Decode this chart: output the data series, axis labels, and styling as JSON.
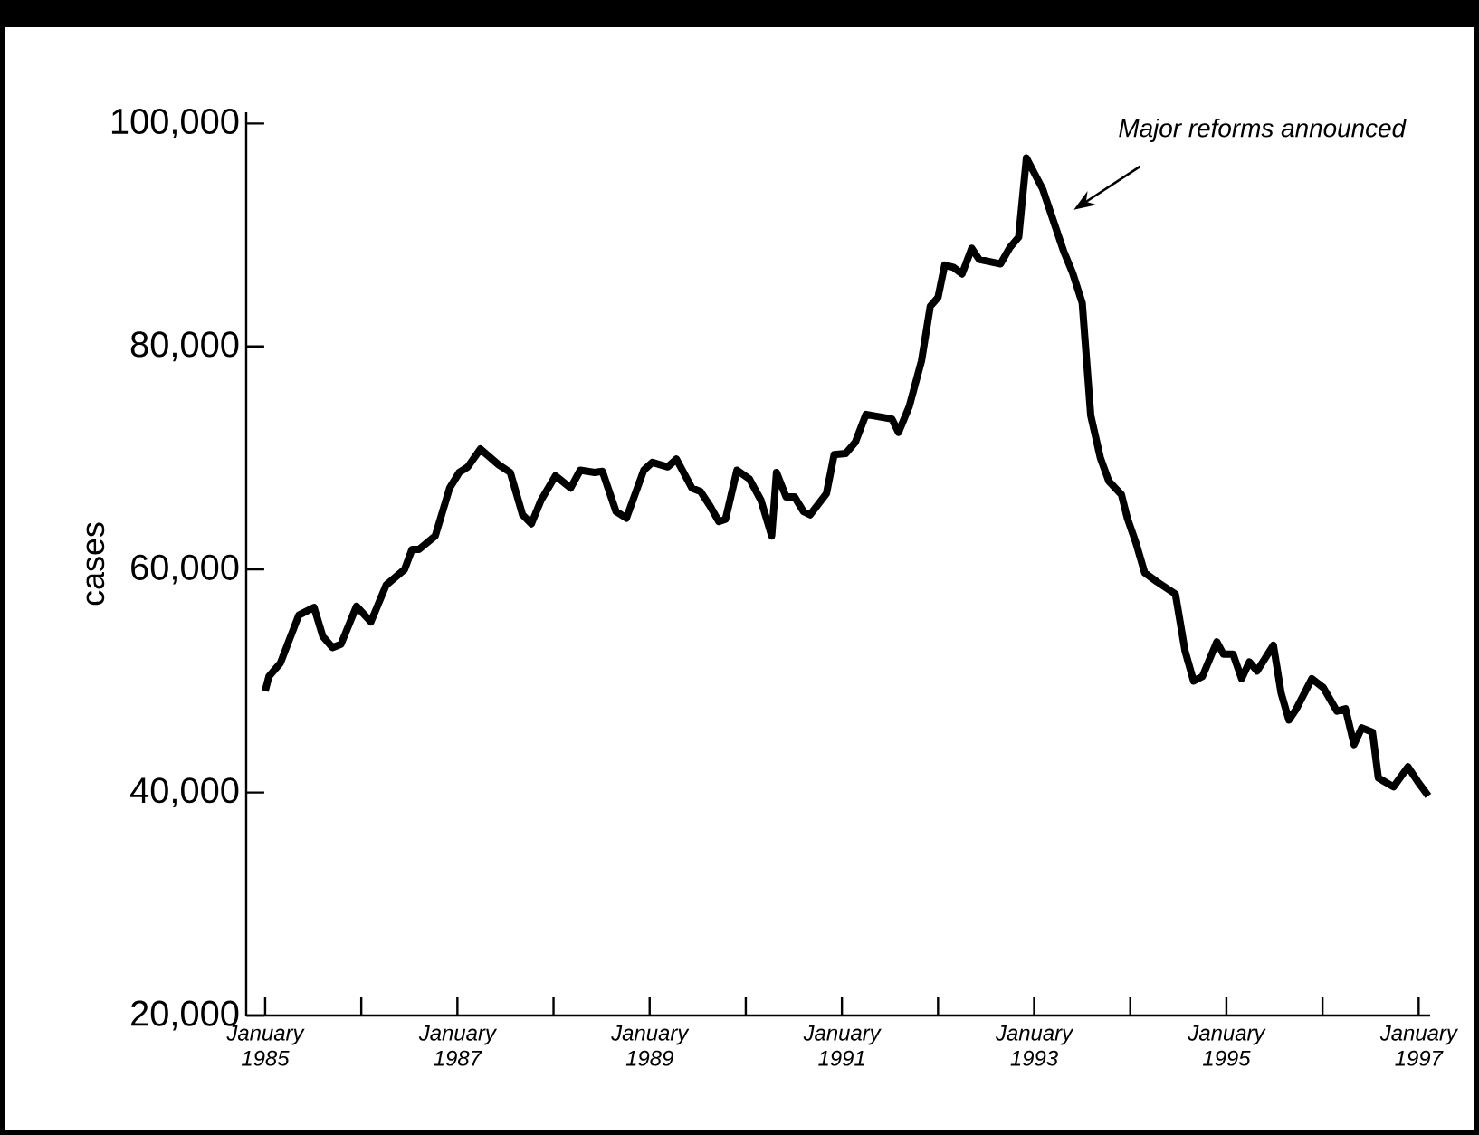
{
  "chart_data": {
    "type": "line",
    "ylabel": "cases",
    "color": "#000000",
    "line_style": "solid",
    "xlim": [
      "1984-10-20",
      "1997-02-14"
    ],
    "ylim": [
      20000,
      101000
    ],
    "xticks": [
      {
        "value": "1985-01",
        "label": "January 1985"
      },
      {
        "value": "1986-01",
        "label": null
      },
      {
        "value": "1987-01",
        "label": "January 1987"
      },
      {
        "value": "1988-01",
        "label": null
      },
      {
        "value": "1989-01",
        "label": "January 1989"
      },
      {
        "value": "1990-01",
        "label": null
      },
      {
        "value": "1991-01",
        "label": "January 1991"
      },
      {
        "value": "1992-01",
        "label": null
      },
      {
        "value": "1993-01",
        "label": "January 1993"
      },
      {
        "value": "1994-01",
        "label": null
      },
      {
        "value": "1995-01",
        "label": "January 1995"
      },
      {
        "value": "1996-01",
        "label": null
      },
      {
        "value": "1997-01",
        "label": "January 1997"
      }
    ],
    "yticks": [
      {
        "value": 20000,
        "label": "20,000"
      },
      {
        "value": 40000,
        "label": "40,000"
      },
      {
        "value": 60000,
        "label": "60,000"
      },
      {
        "value": 80000,
        "label": "80,000"
      },
      {
        "value": 100000,
        "label": "100,000"
      }
    ],
    "annotations": [
      "Major reforms announced"
    ],
    "x": [
      "1985-01-01",
      "1985-01-15",
      "1985-02-28",
      "1985-05-07",
      "1985-07-04",
      "1985-08-07",
      "1985-09-13",
      "1985-10-15",
      "1985-12-13",
      "1986-02-07",
      "1986-04-04",
      "1986-06-13",
      "1986-07-11",
      "1986-08-07",
      "1986-10-08",
      "1986-12-02",
      "1987-01-08",
      "1987-02-10",
      "1987-03-27",
      "1987-06-05",
      "1987-07-19",
      "1987-09-05",
      "1987-10-08",
      "1987-11-14",
      "1988-01-08",
      "1988-03-05",
      "1988-04-11",
      "1988-06-05",
      "1988-07-04",
      "1988-08-25",
      "1988-10-04",
      "1988-12-09",
      "1989-01-11",
      "1989-03-09",
      "1989-04-11",
      "1989-06-09",
      "1989-07-11",
      "1989-08-17",
      "1989-09-20",
      "1989-10-15",
      "1989-11-28",
      "1990-01-15",
      "1990-02-28",
      "1990-04-08",
      "1990-04-26",
      "1990-06-02",
      "1990-07-04",
      "1990-08-07",
      "1990-09-02",
      "1990-11-03",
      "1990-12-02",
      "1991-01-15",
      "1991-02-21",
      "1991-04-01",
      "1991-07-08",
      "1991-08-03",
      "1991-09-13",
      "1991-10-29",
      "1991-12-02",
      "1992-01-01",
      "1992-01-26",
      "1992-02-28",
      "1992-04-01",
      "1992-05-07",
      "1992-06-05",
      "1992-08-25",
      "1992-10-01",
      "1992-11-03",
      "1992-12-02",
      "1993-02-03",
      "1993-04-22",
      "1993-05-25",
      "1993-07-01",
      "1993-08-03",
      "1993-09-09",
      "1993-10-11",
      "1993-11-28",
      "1993-12-20",
      "1994-01-22",
      "1994-02-25",
      "1994-04-11",
      "1994-06-20",
      "1994-07-26",
      "1994-08-28",
      "1994-10-01",
      "1994-11-25",
      "1994-12-20",
      "1995-01-26",
      "1995-02-28",
      "1995-03-27",
      "1995-04-26",
      "1995-06-27",
      "1995-07-26",
      "1995-08-25",
      "1995-09-23",
      "1995-11-21",
      "1996-01-04",
      "1996-02-25",
      "1996-03-27",
      "1996-04-29",
      "1996-05-28",
      "1996-07-08",
      "1996-07-30",
      "1996-09-27",
      "1996-11-21",
      "1996-12-27",
      "1997-02-07"
    ],
    "values": [
      49100,
      50400,
      51600,
      55900,
      56600,
      54000,
      53000,
      53300,
      56700,
      55300,
      58600,
      60000,
      61800,
      61800,
      63000,
      67300,
      68700,
      69200,
      70800,
      69400,
      68700,
      64900,
      64100,
      66200,
      68400,
      67300,
      68900,
      68700,
      68800,
      65200,
      64600,
      68900,
      69600,
      69200,
      69900,
      67300,
      67000,
      65700,
      64300,
      64500,
      68900,
      68100,
      66200,
      63000,
      68700,
      66500,
      66500,
      65200,
      64900,
      66800,
      70300,
      70400,
      71400,
      73900,
      73500,
      72300,
      74600,
      78700,
      83600,
      84400,
      87300,
      87100,
      86500,
      88800,
      87800,
      87400,
      88900,
      89800,
      96900,
      94100,
      88500,
      86600,
      83900,
      73800,
      70000,
      67900,
      66700,
      64600,
      62400,
      59700,
      58900,
      57800,
      52700,
      50000,
      50400,
      53500,
      52400,
      52400,
      50200,
      51700,
      50900,
      53200,
      48900,
      46500,
      47500,
      50200,
      49400,
      47300,
      47500,
      44300,
      45800,
      45400,
      41300,
      40500,
      42300,
      41000,
      39700
    ]
  }
}
